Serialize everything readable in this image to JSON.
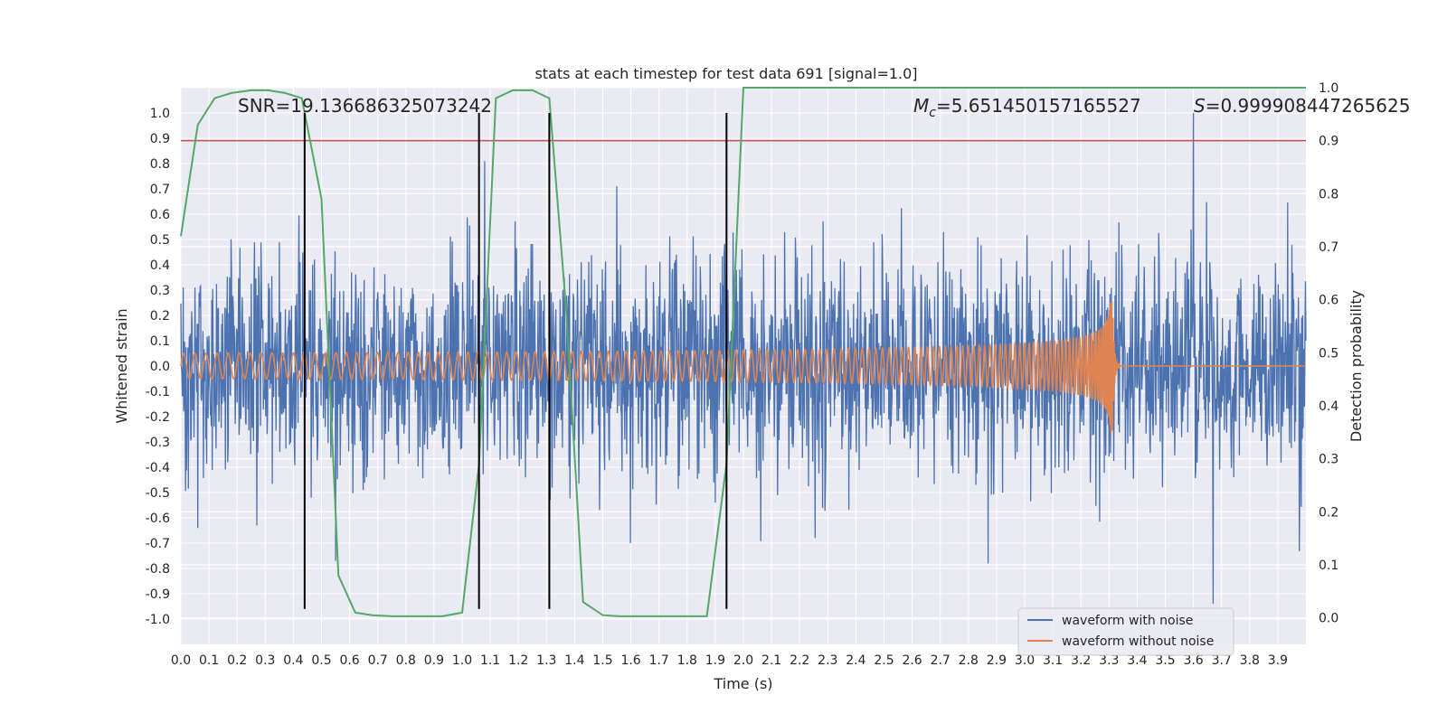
{
  "chart_data": {
    "type": "line",
    "title": "stats at each timestep for test data 691 [signal=1.0]",
    "xlabel": "Time (s)",
    "ylabel": "Whitened strain",
    "y2label": "Detection probability",
    "xlim": [
      0.0,
      4.0
    ],
    "ylim": [
      -1.1,
      1.1
    ],
    "y2lim": [
      -0.05,
      1.0
    ],
    "x_ticks": [
      "0.0",
      "0.1",
      "0.2",
      "0.3",
      "0.4",
      "0.5",
      "0.6",
      "0.7",
      "0.8",
      "0.9",
      "1.0",
      "1.1",
      "1.2",
      "1.3",
      "1.4",
      "1.5",
      "1.6",
      "1.7",
      "1.8",
      "1.9",
      "2.0",
      "2.1",
      "2.2",
      "2.3",
      "2.4",
      "2.5",
      "2.6",
      "2.7",
      "2.8",
      "2.9",
      "3.0",
      "3.1",
      "3.2",
      "3.3",
      "3.4",
      "3.5",
      "3.6",
      "3.7",
      "3.8",
      "3.9"
    ],
    "y_ticks": [
      "1.0",
      "0.9",
      "0.8",
      "0.7",
      "0.6",
      "0.5",
      "0.4",
      "0.3",
      "0.2",
      "0.1",
      "0.0",
      "-0.1",
      "-0.2",
      "-0.3",
      "-0.4",
      "-0.5",
      "-0.6",
      "-0.7",
      "-0.8",
      "-0.9",
      "-1.0"
    ],
    "y2_ticks": [
      "1.0",
      "0.9",
      "0.8",
      "0.7",
      "0.6",
      "0.5",
      "0.4",
      "0.3",
      "0.2",
      "0.1",
      "0.0"
    ],
    "annotations": {
      "snr": "SNR=19.136686325073242",
      "mc_symbol": "M",
      "mc_sub": "c",
      "mc_value": "=5.651450157165527",
      "s_symbol": "S",
      "s_value": "=0.999908447265625"
    },
    "legend": {
      "position": "bottom-right",
      "entries": [
        "waveform with noise",
        "waveform without noise"
      ]
    },
    "colors": {
      "noise": "#4c72b0",
      "clean": "#dd8452",
      "probability": "#55a868",
      "threshold": "#c44e52",
      "markers": "#000000",
      "background": "#eaeaf2",
      "grid": "#ffffff"
    },
    "threshold_y2": 0.9,
    "vertical_markers_x": [
      0.44,
      1.06,
      1.31,
      1.94
    ],
    "marker_y_range": [
      -0.96,
      1.0
    ],
    "noise_series": {
      "name": "waveform with noise",
      "seed": 691,
      "typical_amplitude": 0.4,
      "max_amplitude": 0.82,
      "spikes": [
        [
          3.6,
          1.0
        ],
        [
          3.67,
          -0.94
        ],
        [
          1.08,
          0.81
        ],
        [
          0.06,
          -0.64
        ],
        [
          0.55,
          -0.77
        ],
        [
          2.87,
          -0.78
        ]
      ]
    },
    "clean_series": {
      "name": "waveform without noise",
      "chirp": {
        "start_amplitude": 0.05,
        "peak_amplitude": 0.38,
        "start_frequency_hz": 25,
        "peak_frequency_hz": 240,
        "merger_time": 3.31,
        "ringdown_end": 3.34
      }
    },
    "probability_series": {
      "name": "detection probability",
      "x": [
        0.0,
        0.06,
        0.12,
        0.18,
        0.25,
        0.31,
        0.37,
        0.43,
        0.5,
        0.56,
        0.62,
        0.68,
        0.75,
        0.81,
        0.87,
        0.93,
        1.0,
        1.06,
        1.12,
        1.18,
        1.25,
        1.31,
        1.37,
        1.43,
        1.5,
        1.56,
        1.62,
        1.68,
        1.75,
        1.81,
        1.87,
        1.94,
        2.0,
        2.5,
        3.0,
        3.5,
        4.0
      ],
      "y": [
        0.72,
        0.93,
        0.98,
        0.99,
        0.995,
        0.995,
        0.99,
        0.98,
        0.79,
        0.08,
        0.01,
        0.005,
        0.003,
        0.003,
        0.003,
        0.003,
        0.01,
        0.29,
        0.98,
        0.995,
        0.995,
        0.98,
        0.58,
        0.03,
        0.005,
        0.003,
        0.003,
        0.003,
        0.003,
        0.003,
        0.003,
        0.29,
        1.0,
        1.0,
        1.0,
        1.0,
        1.0
      ]
    }
  }
}
